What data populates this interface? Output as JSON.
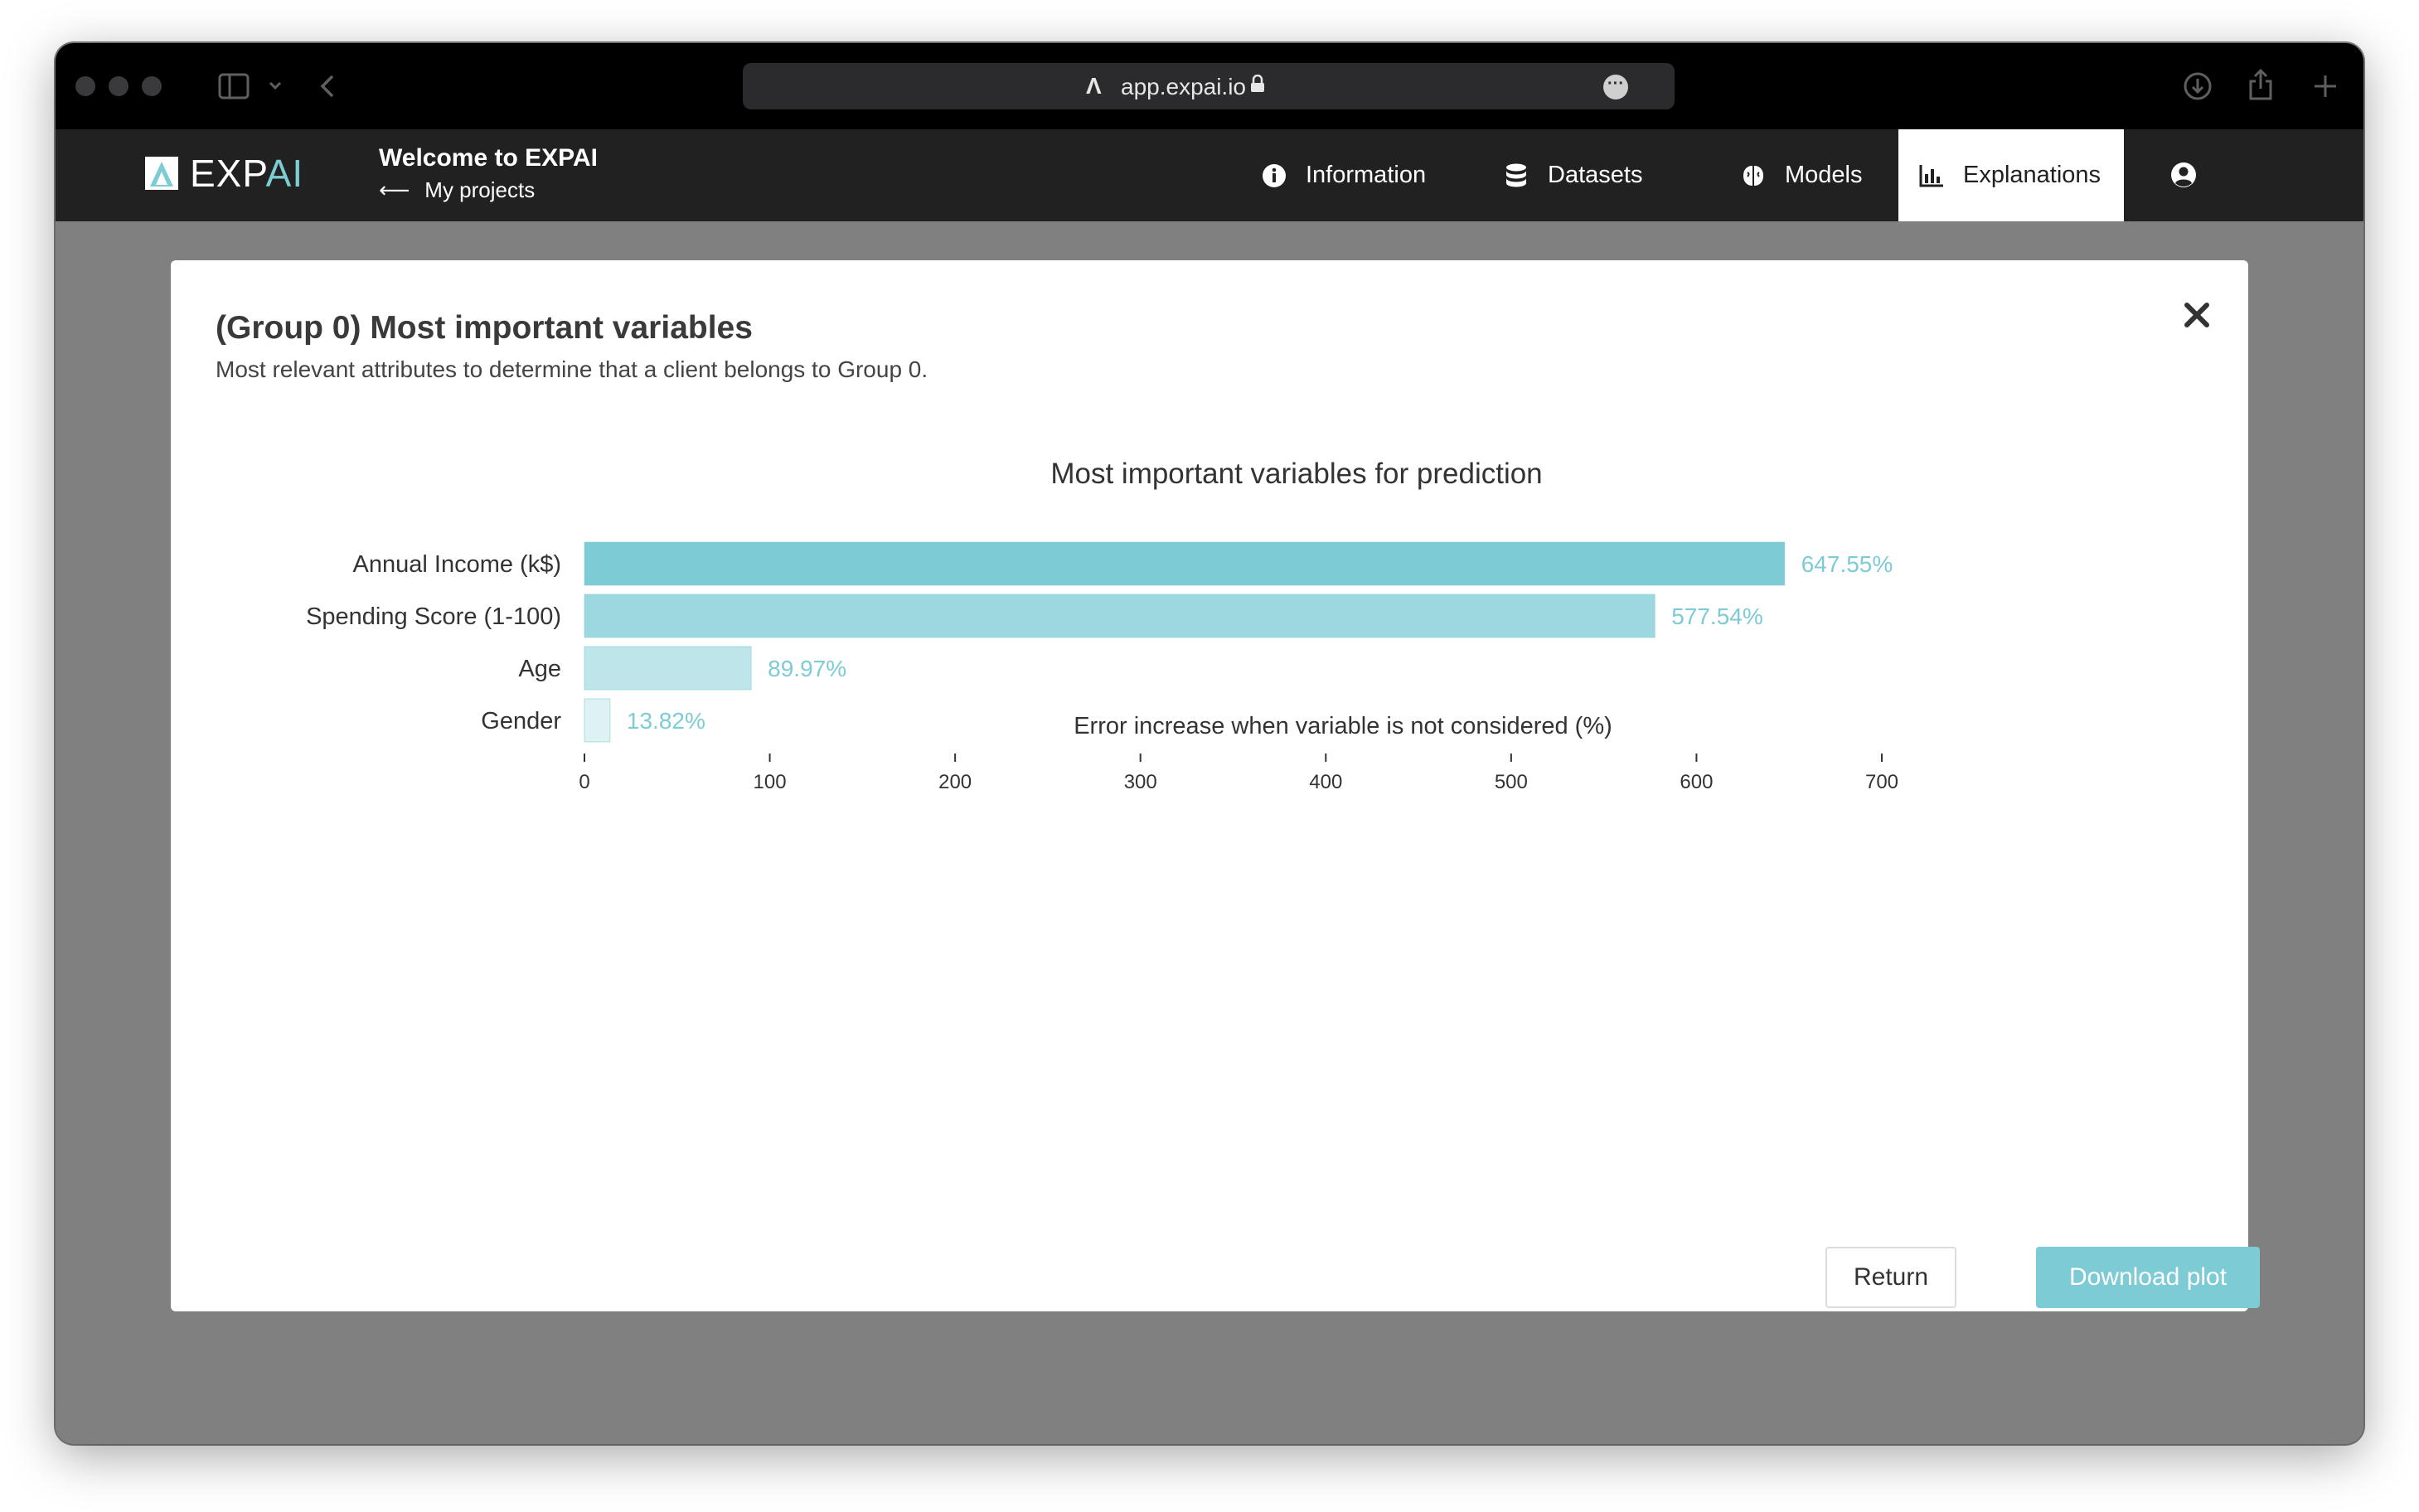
{
  "browser": {
    "url": "app.expai.io"
  },
  "navbar": {
    "brand_left": "EXP",
    "brand_right": "AI",
    "welcome_title": "Welcome to EXPAI",
    "back_label": "My projects",
    "items": [
      {
        "label": "Information",
        "icon": "info-icon",
        "active": false
      },
      {
        "label": "Datasets",
        "icon": "database-icon",
        "active": false
      },
      {
        "label": "Models",
        "icon": "brain-icon",
        "active": false
      },
      {
        "label": "Explanations",
        "icon": "bar-chart-icon",
        "active": true
      }
    ]
  },
  "modal": {
    "title": "(Group 0) Most important variables",
    "subtitle": "Most relevant attributes to determine that a client belongs to Group 0.",
    "return_label": "Return",
    "download_label": "Download plot"
  },
  "colors": {
    "accent": "#7ccbd5",
    "navbar": "#212121"
  },
  "chart_data": {
    "type": "bar",
    "orientation": "horizontal",
    "title": "Most important variables for prediction",
    "xlabel": "Error increase when variable is not considered (%)",
    "ylabel": "",
    "categories": [
      "Annual Income (k$)",
      "Spending Score (1-100)",
      "Age",
      "Gender"
    ],
    "values": [
      647.55,
      577.54,
      89.97,
      13.82
    ],
    "value_labels": [
      "647.55%",
      "577.54%",
      "89.97%",
      "13.82%"
    ],
    "bar_opacity": [
      1.0,
      0.75,
      0.5,
      0.25
    ],
    "xlim": [
      0,
      700
    ],
    "xticks": [
      0,
      100,
      200,
      300,
      400,
      500,
      600,
      700
    ],
    "grid": false,
    "legend": "none"
  }
}
